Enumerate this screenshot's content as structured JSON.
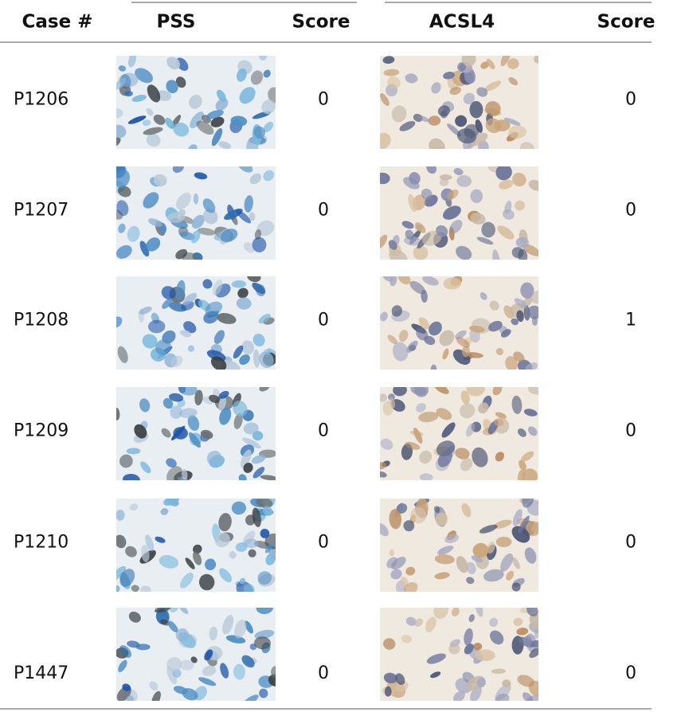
{
  "table": {
    "header": [
      "Case #",
      "PSS",
      "Score",
      "ACSL4",
      "Score"
    ],
    "rows": [
      {
        "case": "P1206",
        "pss_score": 0,
        "acsl4_score": 0
      },
      {
        "case": "P1207",
        "pss_score": 0,
        "acsl4_score": 0
      },
      {
        "case": "P1208",
        "pss_score": 0,
        "acsl4_score": 1
      },
      {
        "case": "P1209",
        "pss_score": 0,
        "acsl4_score": 0
      },
      {
        "case": "P1210",
        "pss_score": 0,
        "acsl4_score": 0
      },
      {
        "case": "P1447",
        "pss_score": 0,
        "acsl4_score": 0
      }
    ]
  }
}
